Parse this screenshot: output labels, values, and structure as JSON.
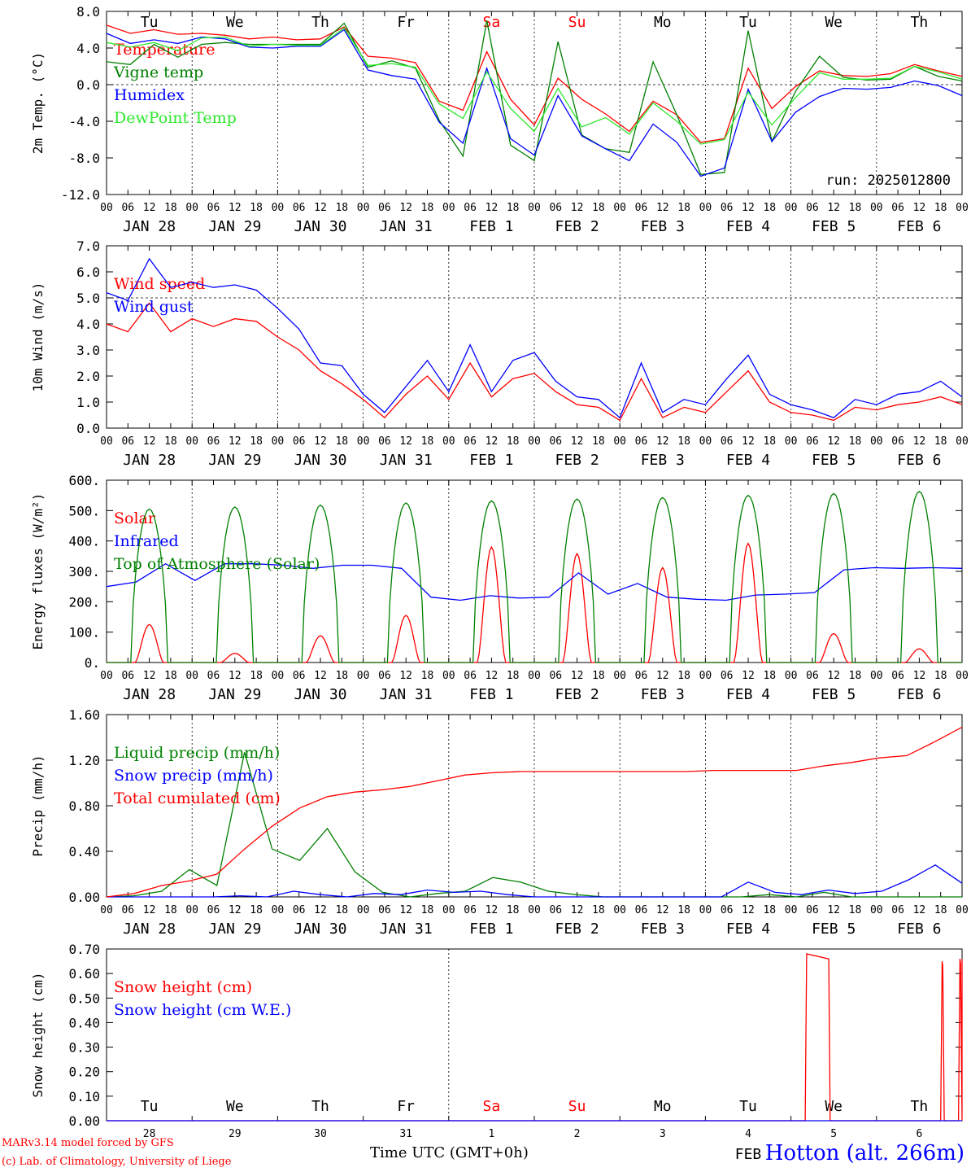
{
  "colors": {
    "red": "#ff0000",
    "green": "#008000",
    "blue": "#0000ff",
    "lightgreen": "#2ee82e",
    "black": "#000000"
  },
  "chart_data": [
    {
      "type": "line",
      "ylabel": "2m Temp. (°C)",
      "ylim": [
        -12,
        8
      ],
      "ytick_values": [
        8,
        4,
        0,
        -4,
        -8,
        -12
      ],
      "ytick_labels": [
        "8.0",
        "4.0",
        "0.0",
        "-4.0",
        "-8.0",
        "-12.0"
      ],
      "ref_line": 0,
      "top_day_labels": [
        "Tu",
        "We",
        "Th",
        "Fr",
        "Sa",
        "Su",
        "Mo",
        "Tu",
        "We",
        "Th"
      ],
      "top_day_colors": [
        "black",
        "black",
        "black",
        "black",
        "red",
        "red",
        "black",
        "black",
        "black",
        "black"
      ],
      "run_label": "run: 2025012800",
      "x_hours": [
        0,
        6,
        12,
        18,
        24,
        30,
        36,
        42,
        48,
        54,
        60,
        66,
        72,
        78,
        84,
        90,
        96,
        102,
        108,
        114,
        120,
        126,
        132,
        138,
        144,
        150,
        156,
        162,
        168,
        174,
        180,
        186,
        192,
        198,
        204,
        210,
        216,
        222,
        228,
        234,
        240
      ],
      "series": [
        {
          "name": "Temperature",
          "color": "red",
          "values": [
            6.5,
            5.6,
            6.0,
            5.5,
            5.6,
            5.4,
            5.0,
            5.2,
            4.9,
            5.0,
            6.3,
            3.1,
            2.9,
            2.4,
            -1.8,
            -2.8,
            3.6,
            -1.6,
            -4.4,
            0.7,
            -1.6,
            -3.2,
            -5.1,
            -1.8,
            -3.3,
            -6.3,
            -5.9,
            1.8,
            -2.6,
            -0.2,
            1.5,
            1.0,
            0.9,
            1.2,
            2.2,
            1.5,
            0.9
          ]
        },
        {
          "name": "Vigne temp",
          "color": "green",
          "values": [
            2.5,
            2.2,
            4.4,
            3.0,
            4.4,
            4.6,
            4.4,
            4.4,
            4.4,
            4.4,
            6.7,
            1.9,
            2.6,
            1.8,
            -3.9,
            -7.8,
            7.0,
            -6.6,
            -8.3,
            4.7,
            -5.5,
            -7.0,
            -7.4,
            2.5,
            -3.3,
            -9.8,
            -9.6,
            5.9,
            -6.2,
            -0.7,
            3.1,
            0.8,
            0.5,
            0.6,
            2.0,
            0.9,
            0.4
          ]
        },
        {
          "name": "Humidex",
          "color": "blue",
          "values": [
            5.6,
            4.5,
            4.9,
            4.5,
            5.2,
            5.0,
            4.1,
            4.0,
            4.2,
            4.2,
            6.0,
            1.6,
            1.0,
            0.6,
            -4.1,
            -6.4,
            1.8,
            -5.9,
            -7.7,
            -1.2,
            -5.6,
            -7.0,
            -8.3,
            -4.3,
            -6.3,
            -10.0,
            -9.1,
            -0.5,
            -6.2,
            -3.0,
            -1.3,
            -0.4,
            -0.5,
            -0.3,
            0.4,
            -0.1,
            -1.2
          ]
        },
        {
          "name": "DewPoint Temp",
          "color": "lightgreen",
          "values": [
            4.6,
            4.1,
            4.6,
            3.7,
            5.1,
            5.2,
            4.2,
            4.4,
            4.3,
            4.3,
            6.2,
            2.1,
            2.3,
            1.9,
            -2.1,
            -3.7,
            1.4,
            -2.6,
            -5.1,
            -0.4,
            -4.6,
            -3.6,
            -5.4,
            -2.0,
            -4.0,
            -6.5,
            -6.0,
            -0.8,
            -4.4,
            -1.4,
            1.3,
            0.6,
            0.6,
            0.7,
            2.0,
            1.4,
            0.6
          ]
        }
      ]
    },
    {
      "type": "line",
      "ylabel": "10m Wind (m/s)",
      "ylim": [
        0,
        7
      ],
      "ytick_values": [
        7,
        6,
        5,
        4,
        3,
        2,
        1,
        0
      ],
      "ytick_labels": [
        "7.0",
        "6.0",
        "5.0",
        "4.0",
        "3.0",
        "2.0",
        "1.0",
        "0.0"
      ],
      "ref_line": 5,
      "series": [
        {
          "name": "Wind speed",
          "color": "red",
          "values": [
            4.0,
            3.7,
            4.8,
            3.7,
            4.2,
            3.9,
            4.2,
            4.1,
            3.5,
            3.0,
            2.2,
            1.7,
            1.1,
            0.4,
            1.3,
            2.0,
            1.1,
            2.5,
            1.2,
            1.9,
            2.1,
            1.4,
            0.9,
            0.8,
            0.3,
            1.9,
            0.4,
            0.8,
            0.6,
            1.4,
            2.2,
            1.0,
            0.6,
            0.5,
            0.3,
            0.8,
            0.7,
            0.9,
            1.0,
            1.2,
            0.9
          ]
        },
        {
          "name": "Wind gust",
          "color": "blue",
          "values": [
            5.2,
            4.9,
            6.5,
            5.4,
            5.6,
            5.4,
            5.5,
            5.3,
            4.6,
            3.8,
            2.5,
            2.4,
            1.3,
            0.6,
            1.6,
            2.6,
            1.4,
            3.2,
            1.4,
            2.6,
            2.9,
            1.8,
            1.2,
            1.1,
            0.4,
            2.5,
            0.6,
            1.1,
            0.9,
            1.9,
            2.8,
            1.3,
            0.9,
            0.7,
            0.4,
            1.1,
            0.9,
            1.3,
            1.4,
            1.8,
            1.2
          ]
        }
      ]
    },
    {
      "type": "line",
      "ylabel": "Energy fluxes (W/m²)",
      "ylim": [
        0,
        600
      ],
      "ytick_values": [
        600,
        500,
        400,
        300,
        200,
        100,
        0
      ],
      "ytick_labels": [
        "600.",
        "500.",
        "400.",
        "300.",
        "200.",
        "100.",
        "0."
      ],
      "series": [
        {
          "name": "Solar",
          "color": "red",
          "peaks": [
            125,
            30,
            88,
            155,
            380,
            358,
            312,
            392,
            95,
            45
          ]
        },
        {
          "name": "Infrared",
          "color": "blue",
          "values": [
            250,
            265,
            325,
            270,
            325,
            325,
            320,
            310,
            320,
            320,
            310,
            215,
            205,
            220,
            212,
            215,
            295,
            225,
            260,
            215,
            208,
            205,
            222,
            225,
            230,
            305,
            312,
            310,
            312,
            310
          ]
        },
        {
          "name": "Top of Atmosphere (Solar)",
          "color": "green",
          "peaks": [
            505,
            512,
            518,
            525,
            532,
            538,
            543,
            550,
            556,
            563
          ]
        }
      ]
    },
    {
      "type": "line",
      "ylabel": "Precip (mm/h)",
      "ylim": [
        0,
        1.6
      ],
      "ytick_values": [
        1.6,
        1.2,
        0.8,
        0.4,
        0.0
      ],
      "ytick_labels": [
        "1.60",
        "1.20",
        "0.80",
        "0.40",
        "0.00"
      ],
      "series": [
        {
          "name": "Liquid precip (mm/h)",
          "color": "green",
          "values": [
            0.0,
            0.01,
            0.05,
            0.24,
            0.1,
            1.27,
            0.42,
            0.32,
            0.6,
            0.22,
            0.04,
            0.0,
            0.03,
            0.05,
            0.17,
            0.13,
            0.05,
            0.02,
            0.0,
            0.0,
            0.0,
            0.0,
            0.0,
            0.0,
            0.02,
            0.0,
            0.04,
            0.0,
            0.0,
            0.0,
            0.0,
            0.0
          ]
        },
        {
          "name": "Snow precip (mm/h)",
          "color": "blue",
          "values": [
            0.0,
            0.0,
            0.0,
            0.0,
            0.0,
            0.01,
            0.0,
            0.05,
            0.02,
            0.0,
            0.03,
            0.02,
            0.06,
            0.04,
            0.05,
            0.02,
            0.0,
            0.0,
            0.0,
            0.0,
            0.0,
            0.0,
            0.0,
            0.0,
            0.13,
            0.04,
            0.02,
            0.06,
            0.03,
            0.05,
            0.15,
            0.28,
            0.12
          ]
        },
        {
          "name": "Total cumulated (cm)",
          "color": "red",
          "values": [
            0.0,
            0.03,
            0.1,
            0.14,
            0.2,
            0.42,
            0.62,
            0.78,
            0.88,
            0.92,
            0.94,
            0.97,
            1.02,
            1.07,
            1.09,
            1.1,
            1.1,
            1.1,
            1.1,
            1.1,
            1.1,
            1.1,
            1.11,
            1.11,
            1.11,
            1.11,
            1.15,
            1.18,
            1.22,
            1.24,
            1.36,
            1.49
          ]
        }
      ]
    },
    {
      "type": "line",
      "ylabel": "Snow height (cm)",
      "ylim": [
        0,
        0.7
      ],
      "ytick_values": [
        0.7,
        0.6,
        0.5,
        0.4,
        0.3,
        0.2,
        0.1,
        0.0
      ],
      "ytick_labels": [
        "0.70",
        "0.60",
        "0.50",
        "0.40",
        "0.30",
        "0.20",
        "0.10",
        "0.00"
      ],
      "bottom_day_labels": [
        "Tu",
        "We",
        "Th",
        "Fr",
        "Sa",
        "Su",
        "Mo",
        "Tu",
        "We",
        "Th"
      ],
      "bottom_day_colors": [
        "black",
        "black",
        "black",
        "black",
        "red",
        "red",
        "black",
        "black",
        "black",
        "black"
      ],
      "bottom_date_numbers": [
        "28",
        "29",
        "30",
        "31",
        "1",
        "2",
        "3",
        "4",
        "5",
        "6"
      ],
      "bottom_month_label": "FEB",
      "series": [
        {
          "name": "Snow height (cm)",
          "color": "red",
          "segments": [
            {
              "start": 196,
              "peak": 0.68,
              "end": 203
            },
            {
              "start": 234,
              "peak": 0.65,
              "end": 235
            },
            {
              "start": 239,
              "peak": 0.66,
              "end": 240
            }
          ]
        },
        {
          "name": "Snow height (cm W.E.)",
          "color": "blue",
          "values": [
            0,
            0
          ]
        }
      ]
    }
  ],
  "x_axis": {
    "hour_labels": [
      "00",
      "06",
      "12",
      "18"
    ],
    "final_hour_label": "00",
    "day_labels": [
      "JAN 28",
      "JAN 29",
      "JAN 30",
      "JAN 31",
      "FEB  1",
      "FEB  2",
      "FEB  3",
      "FEB  4",
      "FEB  5",
      "FEB  6"
    ],
    "title": "Time UTC (GMT+0h)"
  },
  "footer": {
    "model_line": "MARv3.14 model forced by GFS",
    "lab_line": "(c) Lab. of Climatology, University of Liege",
    "station": "Hotton (alt. 266m)"
  }
}
